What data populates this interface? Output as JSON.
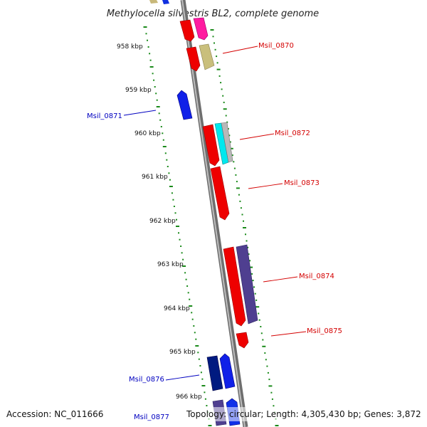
{
  "title": "Methylocella silvestris BL2, complete genome",
  "footer": {
    "accession": "Accession: NC_011666",
    "topology": "Topology: circular; Length: 4,305,430 bp; Genes: 3,872"
  },
  "colors": {
    "forward_label": "#d40000",
    "reverse_label": "#0000c0",
    "tick": "#1a8a1a",
    "backbone": "#8c8c8c"
  },
  "kbp_ticks": [
    "958 kbp",
    "959 kbp",
    "960 kbp",
    "961 kbp",
    "962 kbp",
    "963 kbp",
    "964 kbp",
    "965 kbp",
    "966 kbp"
  ],
  "gene_labels": {
    "msil_0870": "Msil_0870",
    "msil_0871": "Msil_0871",
    "msil_0872": "Msil_0872",
    "msil_0873": "Msil_0873",
    "msil_0874": "Msil_0874",
    "msil_0875": "Msil_0875",
    "msil_0876": "Msil_0876",
    "msil_0877": "Msil_0877"
  }
}
